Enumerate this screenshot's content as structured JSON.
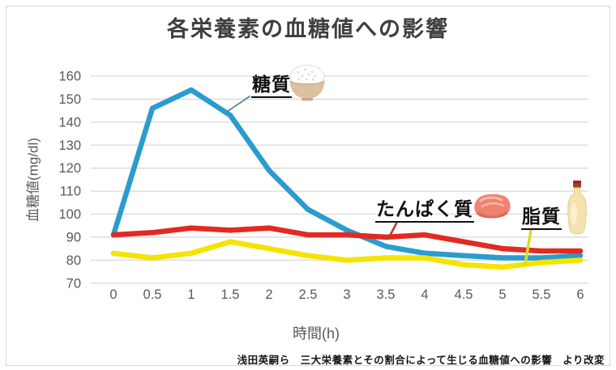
{
  "chart_data": {
    "type": "line",
    "title": "各栄養素の血糖値への影響",
    "xlabel": "時間(h)",
    "ylabel": "血糖値(mg/dl)",
    "x_tick_labels": [
      "0",
      "0.5",
      "1",
      "1.5",
      "2",
      "2.5",
      "3",
      "3.5",
      "4",
      "4.5",
      "5",
      "5.5",
      "6"
    ],
    "y_ticks": [
      160,
      150,
      140,
      130,
      120,
      110,
      100,
      90,
      80,
      70
    ],
    "ylim": [
      70,
      160
    ],
    "grid": true,
    "legend_position": "none (inline annotated labels)",
    "series": [
      {
        "name": "糖質",
        "icon": "rice-bowl-icon",
        "color": "#2b9cce",
        "values": [
          91,
          146,
          154,
          143,
          119,
          102,
          93,
          86,
          83,
          82,
          81,
          81,
          82
        ]
      },
      {
        "name": "たんぱく質",
        "icon": "meat-icon",
        "color": "#e22a22",
        "values": [
          91,
          92,
          94,
          93,
          94,
          91,
          91,
          90,
          91,
          88,
          85,
          84,
          84
        ]
      },
      {
        "name": "脂質",
        "icon": "mayo-bottle-icon",
        "color": "#f5e300",
        "values": [
          83,
          81,
          83,
          88,
          85,
          82,
          80,
          81,
          81,
          78,
          77,
          79,
          80
        ]
      }
    ]
  },
  "source_note": "浅田英嗣ら　三大栄養素とその割合によって生じる血糖値への影響　より改変",
  "colors": {
    "gridline": "#d9d9d9",
    "tick_text": "#595959",
    "title_text": "#3f3f3f",
    "annotation_text": "#111111",
    "carb_leader": "#5b84a3",
    "protein_leader": "#c0392b",
    "fat_leader": "#d6de2a"
  }
}
